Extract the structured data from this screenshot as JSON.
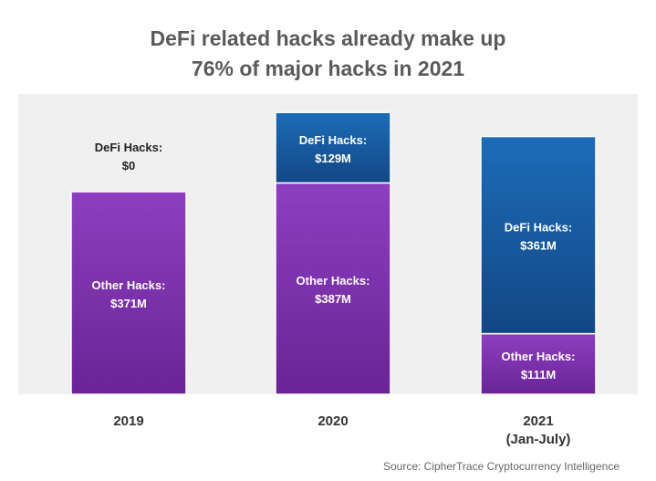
{
  "chart_data": {
    "type": "bar",
    "stacked": true,
    "title": [
      "DeFi related hacks already make up",
      "76% of major hacks in 2021"
    ],
    "categories": [
      [
        "2019"
      ],
      [
        "2020"
      ],
      [
        "2021",
        "(Jan-July)"
      ]
    ],
    "series": [
      {
        "name": "Other Hacks",
        "values": [
          371,
          387,
          111
        ],
        "labels": [
          [
            "Other Hacks:",
            "$371M"
          ],
          [
            "Other Hacks:",
            "$387M"
          ],
          [
            "Other Hacks:",
            "$111M"
          ]
        ],
        "color": "#7a33a8",
        "label_color": "#ffffff"
      },
      {
        "name": "DeFi Hacks",
        "values": [
          0,
          129,
          361
        ],
        "labels": [
          [
            "DeFi Hacks:",
            "$0"
          ],
          [
            "DeFi Hacks:",
            "$129M"
          ],
          [
            "DeFi Hacks:",
            "$361M"
          ]
        ],
        "color": "#1b5a9f",
        "label_color": "#ffffff",
        "zero_label_color": "#222222"
      }
    ],
    "ylim": [
      0,
      580
    ],
    "grid": false,
    "legend": "none",
    "source": "Source: CipherTrace Cryptocurrency Intelligence",
    "plot_background": "#f0f0f0"
  }
}
